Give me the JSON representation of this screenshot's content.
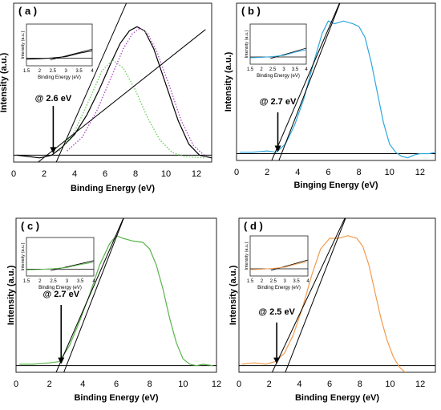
{
  "chart_data": [
    {
      "panel": "( a )",
      "type": "line",
      "xlabel": "Binding Energy (eV)",
      "ylabel": "Intensity (a.u.)",
      "xlim": [
        0,
        13
      ],
      "ylim": [
        0,
        1.15
      ],
      "xticks": [
        "0",
        "2",
        "4",
        "6",
        "8",
        "10",
        "12"
      ],
      "annotation": "@ 2.6 eV",
      "annotation_x": 2.6,
      "baseline_y": 0.05,
      "series": [
        {
          "color": "#000000",
          "style": "solid",
          "x": [
            0.2,
            1.0,
            1.7,
            2.5,
            3.2,
            4.0,
            4.8,
            5.6,
            6.4,
            7.0,
            7.6,
            8.1,
            8.6,
            9.2,
            10.0,
            10.8,
            11.5,
            12.2,
            13.0
          ],
          "y": [
            0.05,
            0.04,
            0.03,
            0.05,
            0.11,
            0.2,
            0.34,
            0.52,
            0.72,
            0.86,
            0.95,
            0.98,
            0.95,
            0.82,
            0.56,
            0.3,
            0.13,
            0.05,
            0.03
          ]
        },
        {
          "color": "#b04fc4",
          "style": "dotted",
          "x": [
            3.5,
            4.5,
            5.5,
            6.5,
            7.2,
            7.8,
            8.3,
            8.8,
            9.4,
            10.2,
            11.0,
            11.8,
            12.6
          ],
          "y": [
            0.08,
            0.18,
            0.38,
            0.64,
            0.82,
            0.93,
            0.97,
            0.93,
            0.8,
            0.56,
            0.3,
            0.12,
            0.04
          ]
        },
        {
          "color": "#6bd05a",
          "style": "dotted",
          "x": [
            3.0,
            4.0,
            5.0,
            5.8,
            6.5,
            7.2,
            8.0,
            8.8,
            9.6,
            10.4,
            11.2,
            12.5
          ],
          "y": [
            0.08,
            0.22,
            0.46,
            0.66,
            0.74,
            0.68,
            0.52,
            0.32,
            0.16,
            0.07,
            0.04,
            0.03
          ]
        }
      ],
      "tangents": [
        {
          "x": [
            2.8,
            7.6
          ],
          "y": [
            0.0,
            1.2
          ]
        },
        {
          "x": [
            1.5,
            12.6
          ],
          "y": [
            -0.01,
            0.96
          ]
        }
      ],
      "inset": {
        "xticks": [
          "1.5",
          "2",
          "2.5",
          "3",
          "3.5",
          "4"
        ],
        "xlabel": "Binding Energy (eV)",
        "ylabel": "Intensity (a.u.)"
      }
    },
    {
      "panel": "( b )",
      "type": "line",
      "xlabel": "Binging Energy (eV)",
      "ylabel": "Intensity (a.u.)",
      "xlim": [
        0,
        13
      ],
      "ylim": [
        0,
        1.15
      ],
      "xticks": [
        "0",
        "2",
        "4",
        "6",
        "8",
        "10",
        "12"
      ],
      "annotation": "@ 2.7 eV",
      "annotation_x": 2.7,
      "baseline_y": 0.05,
      "series": [
        {
          "color": "#2ea7df",
          "style": "solid",
          "x": [
            0.2,
            1.0,
            2.0,
            2.6,
            3.2,
            3.8,
            4.4,
            5.0,
            5.6,
            6.0,
            6.4,
            7.0,
            7.6,
            8.0,
            8.4,
            8.8,
            9.2,
            9.6,
            10.0,
            10.4,
            10.8,
            11.2,
            11.6,
            12.0,
            12.6,
            13.0
          ],
          "y": [
            0.06,
            0.06,
            0.07,
            0.06,
            0.12,
            0.26,
            0.45,
            0.7,
            0.93,
            1.02,
            1.0,
            1.02,
            1.0,
            0.98,
            0.9,
            0.72,
            0.5,
            0.28,
            0.12,
            0.06,
            0.03,
            0.02,
            0.04,
            0.05,
            0.05,
            0.06
          ]
        }
      ],
      "tangents": [
        {
          "x": [
            2.3,
            7.0
          ],
          "y": [
            0.0,
            1.22
          ]
        },
        {
          "x": [
            2.7,
            7.0
          ],
          "y": [
            -0.02,
            1.22
          ]
        }
      ],
      "inset": {
        "xticks": [
          "1.5",
          "2",
          "2.5",
          "3",
          "3.5",
          "4"
        ],
        "xlabel": "Binding Energy (eV)",
        "ylabel": "Intensity (a.u.)"
      }
    },
    {
      "panel": "( c )",
      "type": "line",
      "xlabel": "Binding Energy (eV)",
      "ylabel": "Intensity (a.u.)",
      "xlim": [
        0,
        12
      ],
      "ylim": [
        0,
        1.15
      ],
      "xticks": [
        "0",
        "2",
        "4",
        "6",
        "8",
        "10",
        "12"
      ],
      "annotation": "@ 2.7 eV",
      "annotation_x": 2.7,
      "baseline_y": 0.05,
      "series": [
        {
          "color": "#59b44a",
          "style": "solid",
          "x": [
            0.2,
            1.0,
            2.0,
            2.6,
            3.2,
            3.8,
            4.4,
            5.0,
            5.6,
            6.0,
            6.4,
            7.0,
            7.6,
            8.0,
            8.4,
            8.8,
            9.2,
            9.6,
            10.0,
            10.4,
            10.8,
            11.2,
            11.8
          ],
          "y": [
            0.06,
            0.06,
            0.07,
            0.08,
            0.2,
            0.38,
            0.58,
            0.8,
            0.96,
            1.02,
            1.0,
            0.98,
            0.97,
            0.92,
            0.8,
            0.62,
            0.4,
            0.22,
            0.1,
            0.06,
            0.05,
            0.06,
            0.05
          ]
        }
      ],
      "tangents": [
        {
          "x": [
            2.4,
            6.6
          ],
          "y": [
            0.0,
            1.2
          ]
        },
        {
          "x": [
            2.8,
            6.6
          ],
          "y": [
            -0.02,
            1.2
          ]
        }
      ],
      "inset": {
        "xticks": [
          "1.5",
          "2",
          "2.5",
          "3",
          "3.5",
          "4"
        ],
        "xlabel": "Binding Energy (eV)",
        "ylabel": "Intensity (a.u.)"
      }
    },
    {
      "panel": "( d )",
      "type": "line",
      "xlabel": "Binding Energy (eV)",
      "ylabel": "Intensity (a.u.)",
      "xlim": [
        0,
        13
      ],
      "ylim": [
        0,
        1.15
      ],
      "xticks": [
        "0",
        "2",
        "4",
        "6",
        "8",
        "10",
        "12"
      ],
      "annotation": "@ 2.5 eV",
      "annotation_x": 2.5,
      "baseline_y": 0.05,
      "series": [
        {
          "color": "#f39a4a",
          "style": "solid",
          "x": [
            0.2,
            1.0,
            1.8,
            2.4,
            3.0,
            3.6,
            4.2,
            4.8,
            5.4,
            6.0,
            6.6,
            7.2,
            7.8,
            8.2,
            8.6,
            9.0,
            9.4,
            9.8,
            10.2,
            10.6,
            11.0
          ],
          "y": [
            0.06,
            0.07,
            0.06,
            0.08,
            0.14,
            0.28,
            0.48,
            0.72,
            0.92,
            1.0,
            1.0,
            1.02,
            1.0,
            0.94,
            0.8,
            0.6,
            0.4,
            0.24,
            0.12,
            0.04,
            0.0
          ]
        }
      ],
      "tangents": [
        {
          "x": [
            2.2,
            7.3
          ],
          "y": [
            0.0,
            1.22
          ]
        },
        {
          "x": [
            3.0,
            7.3
          ],
          "y": [
            -0.02,
            1.22
          ]
        }
      ],
      "inset": {
        "xticks": [
          "1.5",
          "2",
          "2.5",
          "3",
          "3.5",
          "4"
        ],
        "xlabel": "Binding Energy (eV)",
        "ylabel": "Intensity (a.u.)"
      }
    }
  ]
}
